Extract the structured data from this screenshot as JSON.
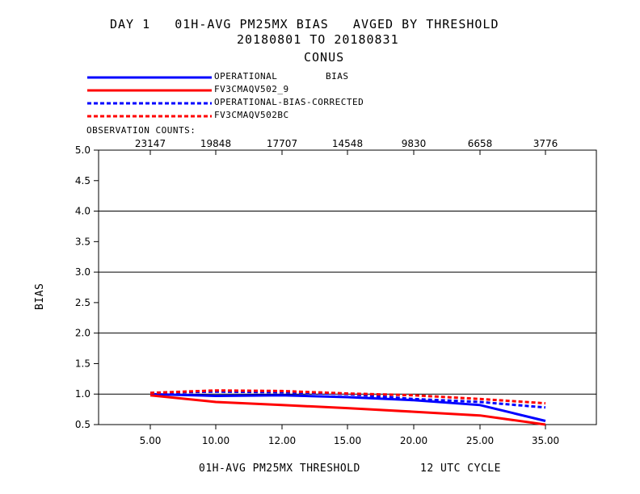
{
  "chart_data": {
    "type": "line",
    "title": "DAY 1   01H-AVG PM25MX BIAS   AVGED BY THRESHOLD",
    "subtitle": "20180801 TO 20180831",
    "region": "CONUS",
    "ylabel": "BIAS",
    "xlabel": "01H-AVG PM25MX THRESHOLD",
    "cycle": "12 UTC CYCLE",
    "observation_counts_label": "OBSERVATION COUNTS:",
    "categories": [
      "5.00",
      "10.00",
      "12.00",
      "15.00",
      "20.00",
      "25.00",
      "35.00"
    ],
    "observation_counts": [
      "23147",
      "19848",
      "17707",
      "14548",
      "9830",
      "6658",
      "3776"
    ],
    "ylim": [
      0.5,
      5.0
    ],
    "yticks": [
      "5.0",
      "4.5",
      "4.0",
      "3.5",
      "3.0",
      "2.5",
      "2.0",
      "1.5",
      "1.0",
      "0.5"
    ],
    "ytick_values": [
      5.0,
      4.5,
      4.0,
      3.5,
      3.0,
      2.5,
      2.0,
      1.5,
      1.0,
      0.5
    ],
    "grid_y_values": [
      5.0,
      4.0,
      3.0,
      2.0,
      1.0
    ],
    "series": [
      {
        "name": "OPERATIONAL",
        "legend_suffix": "BIAS",
        "color": "#0000ff",
        "style": "solid",
        "values": [
          1.0,
          0.97,
          0.98,
          0.95,
          0.9,
          0.82,
          0.56
        ]
      },
      {
        "name": "FV3CMAQV502_9",
        "legend_suffix": "",
        "color": "#ff0000",
        "style": "solid",
        "values": [
          0.98,
          0.87,
          0.82,
          0.77,
          0.71,
          0.65,
          0.5
        ]
      },
      {
        "name": "OPERATIONAL-BIAS-CORRECTED",
        "legend_suffix": "",
        "color": "#0000ff",
        "style": "dashed",
        "values": [
          1.02,
          1.04,
          1.03,
          1.0,
          0.92,
          0.87,
          0.78
        ]
      },
      {
        "name": "FV3CMAQV502BC",
        "legend_suffix": "",
        "color": "#ff0000",
        "style": "dashed",
        "values": [
          1.02,
          1.06,
          1.05,
          1.01,
          0.98,
          0.92,
          0.85
        ]
      }
    ]
  }
}
